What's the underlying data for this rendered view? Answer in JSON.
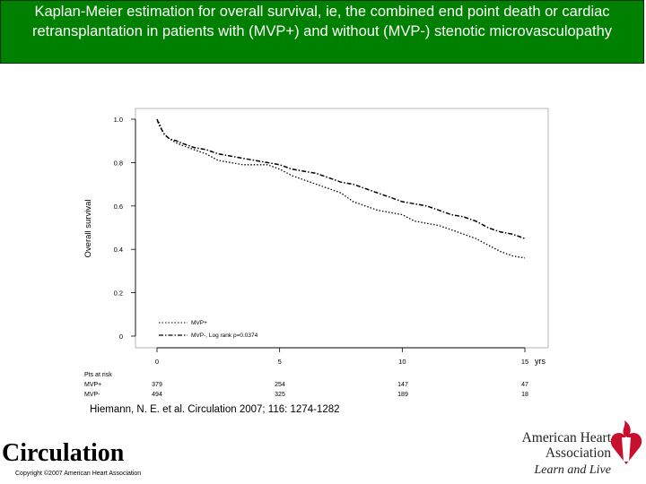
{
  "slide": {
    "title": "Kaplan-Meier estimation for overall survival, ie, the combined end point death or cardiac retransplantation in patients with (MVP+) and without (MVP-) stenotic microvasculopathy",
    "citation": "Hiemann, N. E. et al. Circulation 2007; 116: 1274-1282",
    "journal": "Circulation",
    "copyright": "Copyright ©2007 American Heart Association",
    "publisher_line1": "American Heart",
    "publisher_line2": "Association",
    "publisher_tagline": "Learn and Live",
    "colors": {
      "title_bg": "#008000",
      "title_text": "#ffffff",
      "logo_red": "#c8102e"
    },
    "icons": [
      "american-heart-association-heart-torch-icon"
    ]
  },
  "chart_data": {
    "type": "line",
    "ylabel": "Overall survival",
    "x_unit": "yrs",
    "xlim": [
      0,
      16
    ],
    "ylim": [
      0,
      1.0
    ],
    "x_ticks": [
      "0",
      "5",
      "10",
      "15"
    ],
    "y_ticks": [
      "0",
      "0.2",
      "0.4",
      "0.6",
      "0.8",
      "1.0"
    ],
    "grid": false,
    "legend_position": "bottom-left",
    "legend": [
      "MVP+",
      "MVP-, Log rank p=0.0374"
    ],
    "series": [
      {
        "name": "MVP+",
        "style": "dotted",
        "x": [
          0,
          0.1,
          0.2,
          0.3,
          0.5,
          0.8,
          1.0,
          1.5,
          2.0,
          2.5,
          3.0,
          3.5,
          4.0,
          4.5,
          5.0,
          5.5,
          6.0,
          6.5,
          7.0,
          7.5,
          8.0,
          8.5,
          9.0,
          9.5,
          10.0,
          10.5,
          11.0,
          11.5,
          12.0,
          12.5,
          13.0,
          13.5,
          14.0,
          14.5,
          15.0
        ],
        "y": [
          1.0,
          0.98,
          0.95,
          0.93,
          0.91,
          0.89,
          0.88,
          0.86,
          0.84,
          0.81,
          0.8,
          0.79,
          0.79,
          0.79,
          0.77,
          0.74,
          0.72,
          0.7,
          0.68,
          0.66,
          0.62,
          0.6,
          0.58,
          0.57,
          0.56,
          0.53,
          0.52,
          0.51,
          0.49,
          0.47,
          0.45,
          0.42,
          0.39,
          0.37,
          0.36
        ]
      },
      {
        "name": "MVP-, Log rank p=0.0374",
        "style": "dash-dot",
        "x": [
          0,
          0.1,
          0.2,
          0.3,
          0.5,
          0.8,
          1.0,
          1.5,
          2.0,
          2.5,
          3.0,
          3.5,
          4.0,
          4.5,
          5.0,
          5.5,
          6.0,
          6.5,
          7.0,
          7.5,
          8.0,
          8.5,
          9.0,
          9.5,
          10.0,
          10.5,
          11.0,
          11.5,
          12.0,
          12.5,
          13.0,
          13.5,
          14.0,
          14.5,
          15.0
        ],
        "y": [
          1.0,
          0.97,
          0.95,
          0.93,
          0.91,
          0.9,
          0.89,
          0.87,
          0.86,
          0.84,
          0.83,
          0.82,
          0.81,
          0.8,
          0.79,
          0.77,
          0.76,
          0.75,
          0.73,
          0.71,
          0.7,
          0.68,
          0.66,
          0.64,
          0.62,
          0.61,
          0.6,
          0.58,
          0.56,
          0.55,
          0.53,
          0.5,
          0.48,
          0.47,
          0.45
        ]
      }
    ],
    "at_risk": {
      "header": "Pts at risk",
      "rows": [
        {
          "label": "MVP+",
          "values": [
            "379",
            "254",
            "147",
            "47"
          ]
        },
        {
          "label": "MVP-",
          "values": [
            "494",
            "325",
            "189",
            "18"
          ]
        }
      ]
    }
  }
}
